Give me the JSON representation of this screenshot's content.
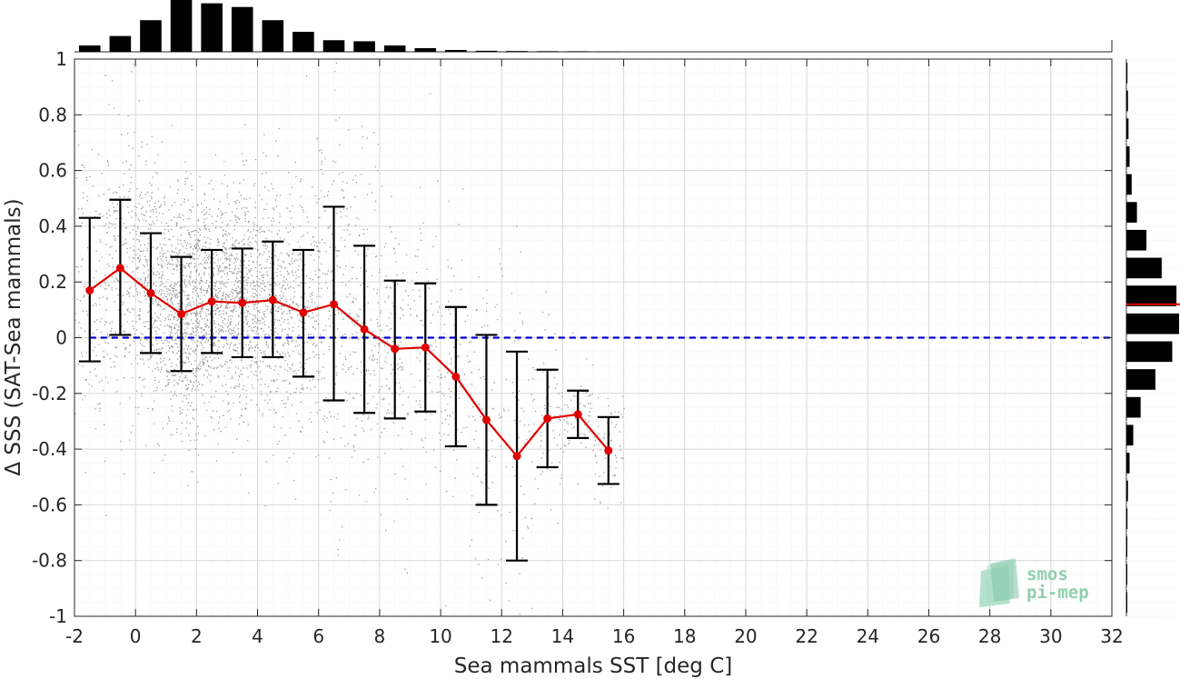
{
  "chart_data": {
    "type": "scatter",
    "xlabel": "Sea mammals SST [deg C]",
    "ylabel": "Δ SSS (SAT-Sea mammals)",
    "xlim": [
      -2,
      32
    ],
    "ylim": [
      -1,
      1
    ],
    "x_ticks": [
      "-2",
      "0",
      "2",
      "4",
      "6",
      "8",
      "10",
      "12",
      "14",
      "16",
      "18",
      "20",
      "22",
      "24",
      "26",
      "28",
      "30",
      "32"
    ],
    "y_ticks": [
      "-1",
      "-0.8",
      "-0.6",
      "-0.4",
      "-0.2",
      "0",
      "0.2",
      "0.4",
      "0.6",
      "0.8",
      "1"
    ],
    "grid": true,
    "reference_line": {
      "y": 0,
      "style": "dashed",
      "color": "#0000cc"
    },
    "binned_mean": {
      "color": "#e00000",
      "x": [
        -1.5,
        -0.5,
        0.5,
        1.5,
        2.5,
        3.5,
        4.5,
        5.5,
        6.5,
        7.5,
        8.5,
        9.5,
        10.5,
        11.5,
        12.5,
        13.5,
        14.5,
        15.5
      ],
      "mean": [
        0.17,
        0.25,
        0.16,
        0.085,
        0.13,
        0.125,
        0.135,
        0.09,
        0.12,
        0.03,
        -0.04,
        -0.035,
        -0.14,
        -0.295,
        -0.425,
        -0.29,
        -0.275,
        -0.405
      ],
      "upper": [
        0.43,
        0.495,
        0.375,
        0.29,
        0.315,
        0.32,
        0.345,
        0.315,
        0.47,
        0.33,
        0.205,
        0.195,
        0.11,
        0.01,
        -0.05,
        -0.115,
        -0.19,
        -0.285
      ],
      "lower": [
        -0.085,
        0.01,
        -0.055,
        -0.12,
        -0.055,
        -0.07,
        -0.07,
        -0.14,
        -0.225,
        -0.27,
        -0.29,
        -0.265,
        -0.39,
        -0.6,
        -0.8,
        -0.465,
        -0.36,
        -0.525
      ]
    },
    "x_histogram": {
      "bin_centers": [
        -1.5,
        -0.5,
        0.5,
        1.5,
        2.5,
        3.5,
        4.5,
        5.5,
        6.5,
        7.5,
        8.5,
        9.5,
        10.5,
        11.5,
        12.5,
        13.5,
        14.5,
        15.5
      ],
      "relative_counts": [
        0.12,
        0.3,
        0.6,
        1.0,
        0.92,
        0.85,
        0.6,
        0.38,
        0.22,
        0.2,
        0.12,
        0.07,
        0.035,
        0.02,
        0.015,
        0.012,
        0.01,
        0.008
      ]
    },
    "y_histogram": {
      "bin_centers": [
        -0.95,
        -0.85,
        -0.75,
        -0.65,
        -0.55,
        -0.45,
        -0.35,
        -0.25,
        -0.15,
        -0.05,
        0.05,
        0.15,
        0.25,
        0.35,
        0.45,
        0.55,
        0.65,
        0.75,
        0.85,
        0.95
      ],
      "relative_counts": [
        0.01,
        0.01,
        0.015,
        0.02,
        0.03,
        0.06,
        0.13,
        0.27,
        0.55,
        0.87,
        1.0,
        0.95,
        0.67,
        0.38,
        0.2,
        0.1,
        0.06,
        0.04,
        0.03,
        0.02
      ],
      "mean_marker": 0.12
    },
    "scatter_color": "#888888"
  },
  "logo": {
    "line1": "smos",
    "line2": "pi-mep"
  }
}
